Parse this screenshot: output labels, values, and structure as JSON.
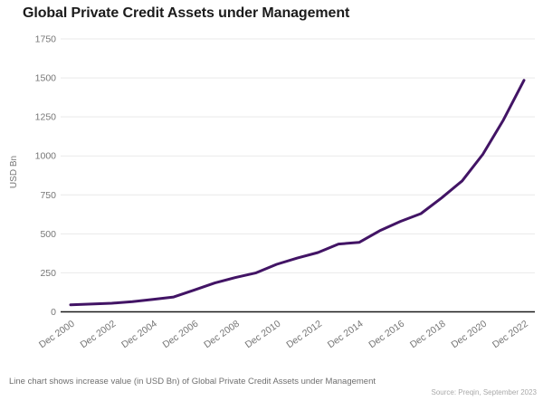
{
  "title": "Global Private Credit Assets under Management",
  "footnote": "Line chart shows increase value (in USD Bn) of Global Private Credit Assets under Management",
  "source": "Source: Preqin, September 2023",
  "colors": {
    "line": "#421465",
    "grid": "#e9e9e9",
    "axis": "#1a1a1a",
    "tick_label": "#767676",
    "title": "#1b1b1b",
    "footnote": "#6f6f6f",
    "source": "#a9a9a9"
  },
  "chart_data": {
    "type": "line",
    "title": "Global Private Credit Assets under Management",
    "ylabel": "USD Bn",
    "xlabel": "",
    "ylim": [
      0,
      1750
    ],
    "ytick_step": 250,
    "grid": true,
    "legend": "none",
    "x": [
      "Dec 2000",
      "Dec 2001",
      "Dec 2002",
      "Dec 2003",
      "Dec 2004",
      "Dec 2005",
      "Dec 2006",
      "Dec 2007",
      "Dec 2008",
      "Dec 2009",
      "Dec 2010",
      "Dec 2011",
      "Dec 2012",
      "Dec 2013",
      "Dec 2014",
      "Dec 2015",
      "Dec 2016",
      "Dec 2017",
      "Dec 2018",
      "Dec 2019",
      "Dec 2020",
      "Dec 2021",
      "Dec 2022"
    ],
    "x_label_step": 2,
    "series": [
      {
        "name": "Global Private Credit AUM (USD Bn)",
        "values": [
          45,
          50,
          55,
          65,
          80,
          95,
          140,
          185,
          220,
          250,
          305,
          345,
          380,
          435,
          445,
          520,
          580,
          630,
          730,
          840,
          1010,
          1230,
          1485
        ]
      }
    ]
  }
}
